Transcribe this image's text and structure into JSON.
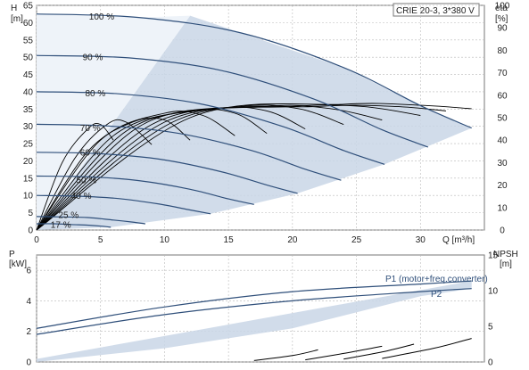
{
  "chart_data": [
    {
      "type": "line",
      "title": "CRIE 20-3, 3*380 V",
      "xlabel": "Q [m³/h]",
      "ylabel_left": "H [m]",
      "ylabel_right": "eta [%]",
      "xlim": [
        0,
        35
      ],
      "ylim_left": [
        0,
        65
      ],
      "ylim_right": [
        0,
        100
      ],
      "x_ticks": [
        "0",
        "5",
        "10",
        "15",
        "20",
        "25",
        "30"
      ],
      "y_ticks_left": [
        "0",
        "5",
        "10",
        "15",
        "20",
        "25",
        "30",
        "35",
        "40",
        "45",
        "50",
        "55",
        "60",
        "65"
      ],
      "y_ticks_right": [
        "0",
        "10",
        "20",
        "30",
        "40",
        "50",
        "60",
        "70",
        "80",
        "90",
        "100"
      ],
      "grid": true,
      "colors": {
        "curve": "#2f4f7a",
        "region": "#c9d6e6",
        "eta": "#000000",
        "grid": "#b9b9b9"
      },
      "speed_series": [
        {
          "name": "100 %",
          "values": [
            [
              0,
              62.5
            ],
            [
              8,
              61.5
            ],
            [
              16,
              57
            ],
            [
              24,
              47
            ],
            [
              30,
              36
            ],
            [
              34,
              29.5
            ]
          ]
        },
        {
          "name": "90 %",
          "values": [
            [
              0,
              50.5
            ],
            [
              7.2,
              49.8
            ],
            [
              14.4,
              46.2
            ],
            [
              21.6,
              38
            ],
            [
              27,
              29
            ],
            [
              30.6,
              24
            ]
          ]
        },
        {
          "name": "80 %",
          "values": [
            [
              0,
              40
            ],
            [
              6.4,
              39.4
            ],
            [
              12.8,
              36.5
            ],
            [
              19.2,
              30
            ],
            [
              24,
              23
            ],
            [
              27.2,
              19
            ]
          ]
        },
        {
          "name": "70 %",
          "values": [
            [
              0,
              30.6
            ],
            [
              5.6,
              30.1
            ],
            [
              11.2,
              27.9
            ],
            [
              16.8,
              23
            ],
            [
              21,
              17.6
            ],
            [
              23.8,
              14.4
            ]
          ]
        },
        {
          "name": "60 %",
          "values": [
            [
              0,
              22.5
            ],
            [
              4.8,
              22.1
            ],
            [
              9.6,
              20.5
            ],
            [
              14.4,
              16.9
            ],
            [
              18,
              13
            ],
            [
              20.4,
              10.6
            ]
          ]
        },
        {
          "name": "50 %",
          "values": [
            [
              0,
              15.6
            ],
            [
              4,
              15.4
            ],
            [
              8,
              14.3
            ],
            [
              12,
              11.8
            ],
            [
              15,
              9
            ],
            [
              17,
              7.4
            ]
          ]
        },
        {
          "name": "40 %",
          "values": [
            [
              0,
              10
            ],
            [
              3.2,
              9.8
            ],
            [
              6.4,
              9.1
            ],
            [
              9.6,
              7.5
            ],
            [
              12,
              5.8
            ],
            [
              13.6,
              4.7
            ]
          ]
        },
        {
          "name": "25 %",
          "values": [
            [
              0,
              3.9
            ],
            [
              2,
              3.8
            ],
            [
              4,
              3.6
            ],
            [
              6,
              2.9
            ],
            [
              7.5,
              2.3
            ],
            [
              8.5,
              1.8
            ]
          ]
        },
        {
          "name": "17 %",
          "values": [
            [
              0,
              1.8
            ],
            [
              1.4,
              1.8
            ],
            [
              2.7,
              1.6
            ],
            [
              4.1,
              1.4
            ],
            [
              5.1,
              1.1
            ],
            [
              5.8,
              0.8
            ]
          ]
        }
      ],
      "eta_curves": [
        {
          "values": [
            [
              0,
              0
            ],
            [
              2,
              30
            ],
            [
              4,
              45
            ],
            [
              5,
              47
            ],
            [
              6,
              40
            ]
          ]
        },
        {
          "values": [
            [
              0,
              0
            ],
            [
              3,
              32
            ],
            [
              5.5,
              47
            ],
            [
              7,
              48
            ],
            [
              9,
              38
            ]
          ]
        },
        {
          "values": [
            [
              0,
              0
            ],
            [
              4,
              35
            ],
            [
              7.5,
              48
            ],
            [
              10,
              49
            ],
            [
              12,
              40
            ]
          ]
        },
        {
          "values": [
            [
              0,
              0
            ],
            [
              5,
              40
            ],
            [
              10,
              52
            ],
            [
              13,
              51
            ],
            [
              15.5,
              42
            ]
          ]
        },
        {
          "values": [
            [
              0,
              0
            ],
            [
              6,
              42
            ],
            [
              12,
              53
            ],
            [
              15.5,
              52
            ],
            [
              18,
              43
            ]
          ]
        },
        {
          "values": [
            [
              0,
              0
            ],
            [
              7,
              44
            ],
            [
              14,
              54
            ],
            [
              18,
              53
            ],
            [
              21,
              45
            ]
          ]
        },
        {
          "values": [
            [
              0,
              0
            ],
            [
              8,
              46
            ],
            [
              16,
              55
            ],
            [
              20.5,
              54
            ],
            [
              24,
              47
            ]
          ]
        },
        {
          "values": [
            [
              0,
              0
            ],
            [
              9,
              47
            ],
            [
              18,
              55
            ],
            [
              23,
              54
            ],
            [
              27,
              49
            ]
          ]
        },
        {
          "values": [
            [
              0,
              0
            ],
            [
              10,
              48
            ],
            [
              20,
              55
            ],
            [
              25.5,
              55
            ],
            [
              30,
              51
            ]
          ]
        },
        {
          "values": [
            [
              0,
              0
            ],
            [
              11,
              49
            ],
            [
              22,
              55
            ],
            [
              28,
              55
            ],
            [
              32,
              53
            ]
          ]
        },
        {
          "values": [
            [
              0,
              0
            ],
            [
              12,
              50
            ],
            [
              24,
              56
            ],
            [
              30,
              55.5
            ],
            [
              34,
              54
            ]
          ]
        }
      ],
      "label_positions_note": "labels placed at left of each curve"
    },
    {
      "type": "line",
      "xlabel": "",
      "ylabel_left": "P [kW]",
      "ylabel_right": "NPSH [m]",
      "xlim": [
        0,
        35
      ],
      "ylim_left": [
        0,
        7
      ],
      "ylim_right": [
        0,
        15
      ],
      "y_ticks_left": [
        "0",
        "2",
        "4",
        "6"
      ],
      "y_ticks_right": [
        "0",
        "5",
        "10",
        "15"
      ],
      "grid": true,
      "series": [
        {
          "name": "P1 (motor+freq.converter)",
          "values": [
            [
              0,
              2.2
            ],
            [
              10,
              3.6
            ],
            [
              20,
              4.6
            ],
            [
              30,
              5.1
            ],
            [
              34,
              5.3
            ]
          ]
        },
        {
          "name": "P2",
          "values": [
            [
              0,
              1.8
            ],
            [
              10,
              3.1
            ],
            [
              20,
              4.0
            ],
            [
              30,
              4.6
            ],
            [
              34,
              4.8
            ]
          ]
        }
      ],
      "npsh_curves": [
        {
          "values": [
            [
              17,
              0.2
            ],
            [
              20,
              0.9
            ],
            [
              22,
              1.7
            ]
          ]
        },
        {
          "values": [
            [
              21,
              0.3
            ],
            [
              24,
              1.2
            ],
            [
              27,
              2.2
            ]
          ]
        },
        {
          "values": [
            [
              24,
              0.4
            ],
            [
              27,
              1.4
            ],
            [
              29.5,
              2.5
            ]
          ]
        },
        {
          "values": [
            [
              27,
              0.5
            ],
            [
              31,
              1.9
            ],
            [
              34,
              3.3
            ]
          ]
        }
      ]
    }
  ]
}
